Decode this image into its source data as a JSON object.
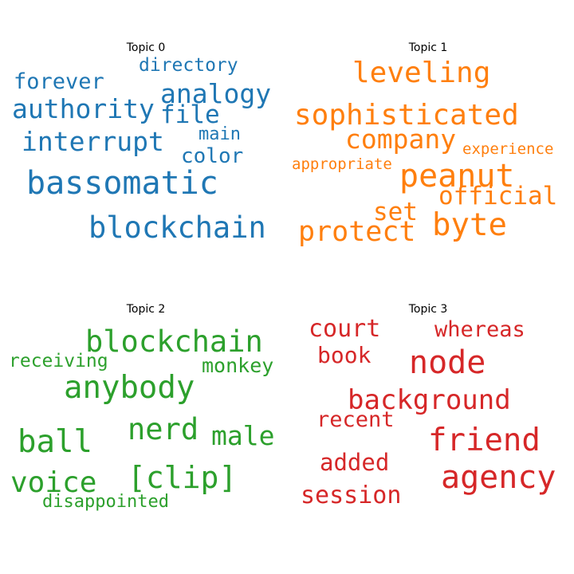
{
  "chart_data": {
    "type": "wordcloud",
    "topics": [
      {
        "title": "Topic 0",
        "color": "#1f77b4",
        "words": [
          "directory",
          "forever",
          "analogy",
          "authority",
          "file",
          "main",
          "interrupt",
          "color",
          "bassomatic",
          "blockchain"
        ]
      },
      {
        "title": "Topic 1",
        "color": "#ff7f0e",
        "words": [
          "leveling",
          "sophisticated",
          "company",
          "experience",
          "appropriate",
          "peanut",
          "official",
          "set",
          "byte",
          "protect"
        ]
      },
      {
        "title": "Topic 2",
        "color": "#2ca02c",
        "words": [
          "blockchain",
          "receiving",
          "monkey",
          "anybody",
          "nerd",
          "ball",
          "male",
          "[clip]",
          "voice",
          "disappointed"
        ]
      },
      {
        "title": "Topic 3",
        "color": "#d62728",
        "words": [
          "court",
          "whereas",
          "book",
          "node",
          "background",
          "recent",
          "friend",
          "added",
          "agency",
          "session"
        ]
      }
    ]
  }
}
